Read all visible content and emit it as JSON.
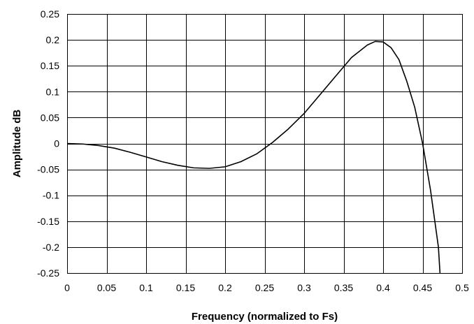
{
  "chart_data": {
    "type": "line",
    "title": "",
    "xlabel": "Frequency (normalized to Fs)",
    "ylabel": "Amplitude dB",
    "xlim": [
      0,
      0.5
    ],
    "ylim": [
      -0.25,
      0.25
    ],
    "xticks": [
      0,
      0.05,
      0.1,
      0.15,
      0.2,
      0.25,
      0.3,
      0.35,
      0.4,
      0.45,
      0.5
    ],
    "yticks": [
      -0.25,
      -0.2,
      -0.15,
      -0.1,
      -0.05,
      0,
      0.05,
      0.1,
      0.15,
      0.2,
      0.25
    ],
    "xtick_labels": [
      "0",
      "0.05",
      "0.1",
      "0.15",
      "0.2",
      "0.25",
      "0.3",
      "0.35",
      "0.4",
      "0.45",
      "0.5"
    ],
    "ytick_labels": [
      "-0.25",
      "-0.2",
      "-0.15",
      "-0.1",
      "-0.05",
      "0",
      "0.05",
      "0.1",
      "0.15",
      "0.2",
      "0.25"
    ],
    "grid": true,
    "legend": "none",
    "line_color": "#000000",
    "series": [
      {
        "x": [
          0,
          0.02,
          0.04,
          0.06,
          0.08,
          0.1,
          0.12,
          0.14,
          0.16,
          0.18,
          0.2,
          0.22,
          0.24,
          0.26,
          0.28,
          0.3,
          0.32,
          0.34,
          0.36,
          0.38,
          0.39,
          0.4,
          0.41,
          0.42,
          0.43,
          0.44,
          0.45,
          0.46,
          0.47,
          0.472
        ],
        "y": [
          0,
          -0.001,
          -0.004,
          -0.009,
          -0.017,
          -0.026,
          -0.035,
          -0.042,
          -0.047,
          -0.048,
          -0.045,
          -0.035,
          -0.02,
          0.002,
          0.028,
          0.058,
          0.094,
          0.13,
          0.166,
          0.19,
          0.197,
          0.196,
          0.185,
          0.162,
          0.12,
          0.07,
          0.0,
          -0.09,
          -0.2,
          -0.25
        ]
      }
    ]
  }
}
